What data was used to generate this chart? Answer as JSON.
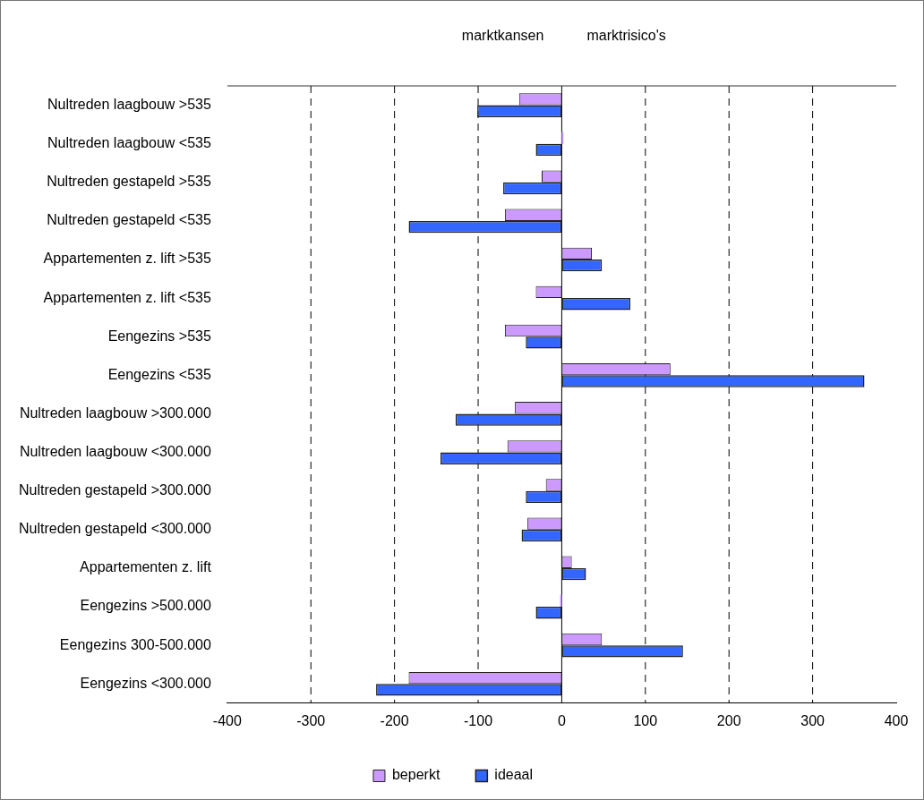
{
  "chart_data": {
    "type": "bar",
    "orientation": "horizontal",
    "categories": [
      "Nultreden laagbouw >535",
      "Nultreden laagbouw <535",
      "Nultreden gestapeld >535",
      "Nultreden gestapeld <535",
      "Appartementen z. lift >535",
      "Appartementen z. lift <535",
      "Eengezins >535",
      "Eengezins <535",
      "Nultreden laagbouw >300.000",
      "Nultreden laagbouw <300.000",
      "Nultreden gestapeld >300.000",
      "Nultreden gestapeld <300.000",
      "Appartementen z. lift",
      "Eengezins >500.000",
      "Eengezins 300-500.000",
      "Eengezins <300.000"
    ],
    "series": [
      {
        "name": "beperkt",
        "color": "#cc99ff",
        "values": [
          -51,
          2,
          -24,
          -68,
          36,
          -31,
          -68,
          130,
          -56,
          -65,
          -19,
          -41,
          12,
          -2,
          48,
          -183
        ]
      },
      {
        "name": "ideaal",
        "color": "#3366ff",
        "values": [
          -101,
          -31,
          -70,
          -183,
          48,
          82,
          -43,
          362,
          -127,
          -145,
          -43,
          -48,
          29,
          -31,
          145,
          -222
        ]
      }
    ],
    "xlim": [
      -400,
      400
    ],
    "xticks": [
      -400,
      -300,
      -200,
      -100,
      0,
      100,
      200,
      300,
      400
    ],
    "grid": "x",
    "legend": "bottom",
    "annotations": [
      "marktkansen",
      "marktrisico's"
    ]
  }
}
